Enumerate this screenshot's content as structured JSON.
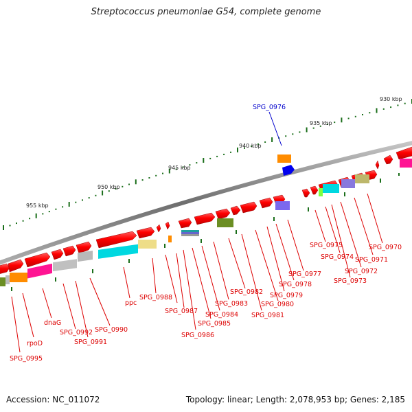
{
  "title": "Streptococcus pneumoniae G54, complete genome",
  "footer": {
    "accession": "Accession: NC_011072",
    "stats": "Topology: linear; Length: 2,078,953 bp; Genes: 2,185"
  },
  "kbp_labels": [
    "930 kbp",
    "935 kbp",
    "940 kbp",
    "945 kbp",
    "950 kbp",
    "955 kbp"
  ],
  "highlight_gene": "SPG_0976",
  "gene_labels": [
    "SPG_0970",
    "SPG_0971",
    "SPG_0972",
    "SPG_0973",
    "SPG_0974",
    "SPG_0975",
    "SPG_0977",
    "SPG_0978",
    "SPG_0979",
    "SPG_0980",
    "SPG_0981",
    "SPG_0982",
    "SPG_0983",
    "SPG_0984",
    "SPG_0985",
    "SPG_0986",
    "SPG_0987",
    "SPG_0988",
    "ppc",
    "SPG_0990",
    "SPG_0991",
    "SPG_0992",
    "dnaG",
    "rpoD",
    "SPG_0995"
  ],
  "colors": {
    "backbone": "#808080",
    "forward_gene": "#ff0000",
    "highlight": "#0000ee",
    "label_line": "#dd0000",
    "tick": "#1a6e1a"
  }
}
